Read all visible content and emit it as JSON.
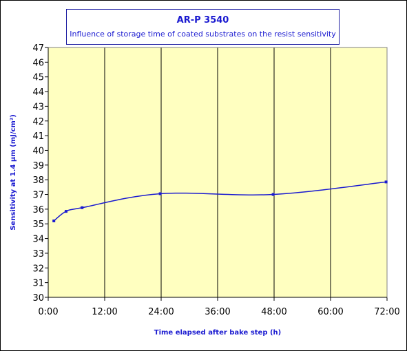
{
  "chart_data": {
    "type": "line",
    "title": "AR-P 3540",
    "subtitle": "Influence of storage time of coated substrates on the resist sensitivity",
    "xlabel": "Time elapsed after bake step (h)",
    "ylabel": "Sensitivity at 1.4 µm (mJ/cm²)",
    "xlim": [
      0,
      72
    ],
    "ylim": [
      30,
      47
    ],
    "x_ticks": [
      {
        "value": 0,
        "label": "0:00"
      },
      {
        "value": 12,
        "label": "12:00"
      },
      {
        "value": 24,
        "label": "24:00"
      },
      {
        "value": 36,
        "label": "36:00"
      },
      {
        "value": 48,
        "label": "48:00"
      },
      {
        "value": 60,
        "label": "60:00"
      },
      {
        "value": 72,
        "label": "72:00"
      }
    ],
    "y_ticks": [
      30,
      31,
      32,
      33,
      34,
      35,
      36,
      37,
      38,
      39,
      40,
      41,
      42,
      43,
      44,
      45,
      46,
      47
    ],
    "grid": true,
    "series": [
      {
        "color": "#1a1ad0",
        "x": [
          1.2,
          3.8,
          7.2,
          23.8,
          47.8,
          71.8
        ],
        "y": [
          35.2,
          35.85,
          36.1,
          37.05,
          37.0,
          37.85
        ]
      }
    ],
    "plot_background": "#ffffc0"
  }
}
